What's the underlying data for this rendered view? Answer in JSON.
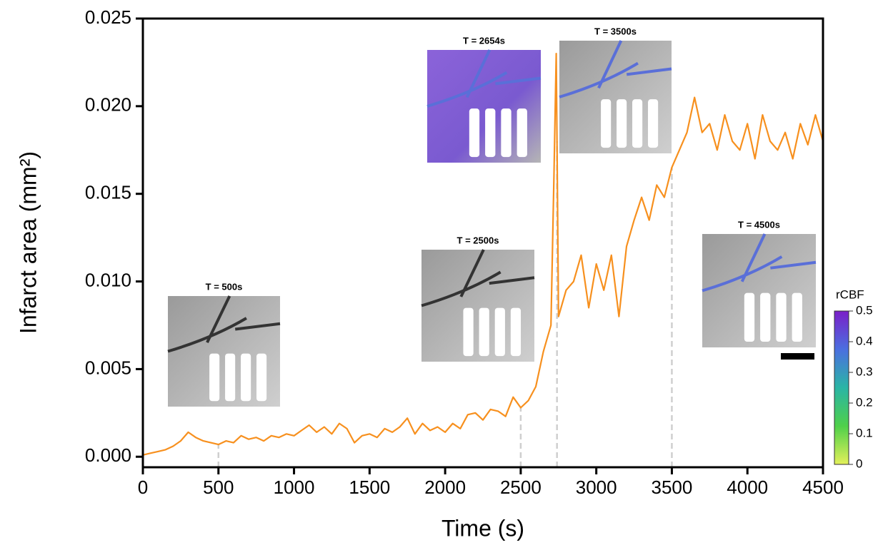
{
  "chart_data": {
    "type": "line",
    "xlabel": "Time (s)",
    "ylabel": "Infarct area (mm²)",
    "x": [
      0,
      50,
      100,
      150,
      200,
      250,
      300,
      350,
      400,
      450,
      500,
      550,
      600,
      650,
      700,
      750,
      800,
      850,
      900,
      950,
      1000,
      1050,
      1100,
      1150,
      1200,
      1250,
      1300,
      1350,
      1400,
      1450,
      1500,
      1550,
      1600,
      1650,
      1700,
      1750,
      1800,
      1850,
      1900,
      1950,
      2000,
      2050,
      2100,
      2150,
      2200,
      2250,
      2300,
      2350,
      2400,
      2450,
      2500,
      2550,
      2600,
      2650,
      2700,
      2720,
      2735,
      2750,
      2800,
      2850,
      2900,
      2950,
      3000,
      3050,
      3100,
      3150,
      3200,
      3250,
      3300,
      3350,
      3400,
      3450,
      3500,
      3550,
      3600,
      3650,
      3700,
      3750,
      3800,
      3850,
      3900,
      3950,
      4000,
      4050,
      4100,
      4150,
      4200,
      4250,
      4300,
      4350,
      4400,
      4450,
      4500
    ],
    "values": [
      0.0001,
      0.0002,
      0.0003,
      0.0004,
      0.0006,
      0.0009,
      0.0014,
      0.0011,
      0.0009,
      0.0008,
      0.0007,
      0.0009,
      0.0008,
      0.0012,
      0.001,
      0.0011,
      0.0009,
      0.0012,
      0.0011,
      0.0013,
      0.0012,
      0.0015,
      0.0018,
      0.0014,
      0.0017,
      0.0013,
      0.0019,
      0.0016,
      0.0008,
      0.0012,
      0.0013,
      0.0011,
      0.0016,
      0.0014,
      0.0017,
      0.0022,
      0.0013,
      0.0019,
      0.0015,
      0.0017,
      0.0014,
      0.0019,
      0.0016,
      0.0024,
      0.0025,
      0.0021,
      0.0027,
      0.0026,
      0.0023,
      0.0034,
      0.0028,
      0.0032,
      0.004,
      0.006,
      0.0075,
      0.016,
      0.023,
      0.008,
      0.0095,
      0.01,
      0.0115,
      0.0085,
      0.011,
      0.0095,
      0.0115,
      0.008,
      0.012,
      0.0135,
      0.0148,
      0.0135,
      0.0155,
      0.0148,
      0.0165,
      0.0175,
      0.0185,
      0.0205,
      0.0185,
      0.019,
      0.0175,
      0.0195,
      0.018,
      0.0175,
      0.019,
      0.017,
      0.0195,
      0.018,
      0.0175,
      0.0185,
      0.017,
      0.019,
      0.0178,
      0.0195,
      0.018
    ],
    "color": "#f7901e",
    "xlim": [
      0,
      4500
    ],
    "xticks": [
      0,
      500,
      1000,
      1500,
      2000,
      2500,
      3000,
      3500,
      4000,
      4500
    ],
    "ylim": [
      -0.0006,
      0.025
    ],
    "yticks": [
      {
        "value": 0,
        "label": "0.000"
      },
      0.005,
      {
        "value": 0.01,
        "label": "0.010"
      },
      0.015,
      {
        "value": 0.02,
        "label": "0.020"
      },
      0.025
    ],
    "reference_lines": [
      500,
      2500,
      2740,
      3500
    ],
    "insets": [
      {
        "label": "T = 500s"
      },
      {
        "label": "T = 2500s"
      },
      {
        "label": "T = 2654s"
      },
      {
        "label": "T = 3500s"
      },
      {
        "label": "T = 4500s"
      }
    ],
    "colorbar": {
      "label": "rCBF",
      "lim": [
        0,
        0.5
      ],
      "ticks": [
        0,
        0.1,
        0.2,
        0.3,
        0.4,
        0.5
      ]
    }
  }
}
